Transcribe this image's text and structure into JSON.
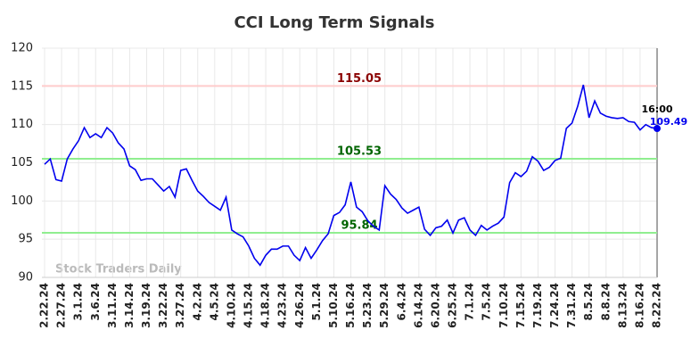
{
  "chart_data": {
    "type": "line",
    "title": "CCI Long Term Signals",
    "watermark": "Stock Traders Daily",
    "categories": [
      "2.22.24",
      null,
      null,
      "2.27.24",
      null,
      null,
      "3.1.24",
      null,
      null,
      "3.6.24",
      null,
      null,
      "3.11.24",
      null,
      null,
      "3.14.24",
      null,
      null,
      "3.19.24",
      null,
      null,
      "3.22.24",
      null,
      null,
      "3.27.24",
      null,
      null,
      "4.2.24",
      null,
      null,
      "4.5.24",
      null,
      null,
      "4.10.24",
      null,
      null,
      "4.15.24",
      null,
      null,
      "4.18.24",
      null,
      null,
      "4.23.24",
      null,
      null,
      "4.26.24",
      null,
      null,
      "5.1.24",
      null,
      null,
      "5.10.24",
      null,
      null,
      "5.16.24",
      null,
      null,
      "5.23.24",
      null,
      null,
      "5.29.24",
      null,
      null,
      "6.4.24",
      null,
      null,
      "6.14.24",
      null,
      null,
      "6.20.24",
      null,
      null,
      "6.25.24",
      null,
      null,
      "7.1.24",
      null,
      null,
      "7.5.24",
      null,
      null,
      "7.10.24",
      null,
      null,
      "7.15.24",
      null,
      null,
      "7.19.24",
      null,
      null,
      "7.24.24",
      null,
      null,
      "7.31.24",
      null,
      null,
      "8.5.24",
      null,
      null,
      "8.8.24",
      null,
      null,
      "8.13.24",
      null,
      null,
      "8.16.24",
      null,
      null,
      "8.22.24"
    ],
    "values": [
      104.8,
      105.5,
      102.8,
      102.6,
      105.5,
      106.8,
      107.9,
      109.6,
      108.3,
      108.8,
      108.3,
      109.6,
      108.9,
      107.6,
      106.8,
      104.6,
      104.1,
      102.7,
      102.9,
      102.9,
      102.1,
      101.3,
      101.9,
      100.5,
      104.0,
      104.2,
      102.7,
      101.3,
      100.6,
      99.8,
      99.3,
      98.8,
      100.5,
      96.2,
      95.7,
      95.3,
      94.1,
      92.5,
      91.6,
      92.9,
      93.7,
      93.7,
      94.1,
      94.1,
      92.9,
      92.2,
      93.9,
      92.5,
      93.6,
      94.8,
      95.7,
      98.1,
      98.5,
      99.5,
      102.5,
      99.2,
      98.6,
      97.4,
      96.7,
      96.2,
      102.0,
      100.9,
      100.2,
      99.1,
      98.4,
      98.8,
      99.2,
      96.3,
      95.5,
      96.5,
      96.7,
      97.5,
      95.8,
      97.5,
      97.8,
      96.2,
      95.5,
      96.8,
      96.2,
      96.7,
      97.1,
      97.9,
      102.4,
      103.7,
      103.2,
      103.9,
      105.8,
      105.2,
      104.0,
      104.4,
      105.3,
      105.6,
      109.5,
      110.2,
      112.4,
      115.2,
      110.9,
      113.1,
      111.5,
      111.1,
      110.9,
      110.8,
      110.9,
      110.4,
      110.3,
      109.3,
      110.0,
      109.6,
      109.49
    ],
    "color": "#0000ee",
    "last_time": "16:00",
    "hlines": [
      {
        "value": 115.05,
        "color": "#ffcccc",
        "text_color": "#8b0000"
      },
      {
        "value": 105.53,
        "color": "#90ee90",
        "text_color": "#006400"
      },
      {
        "value": 95.84,
        "color": "#90ee90",
        "text_color": "#006400"
      }
    ],
    "ylim": [
      90,
      120
    ],
    "yticks": [
      90,
      95,
      100,
      105,
      110,
      115,
      120
    ],
    "grid": true
  }
}
